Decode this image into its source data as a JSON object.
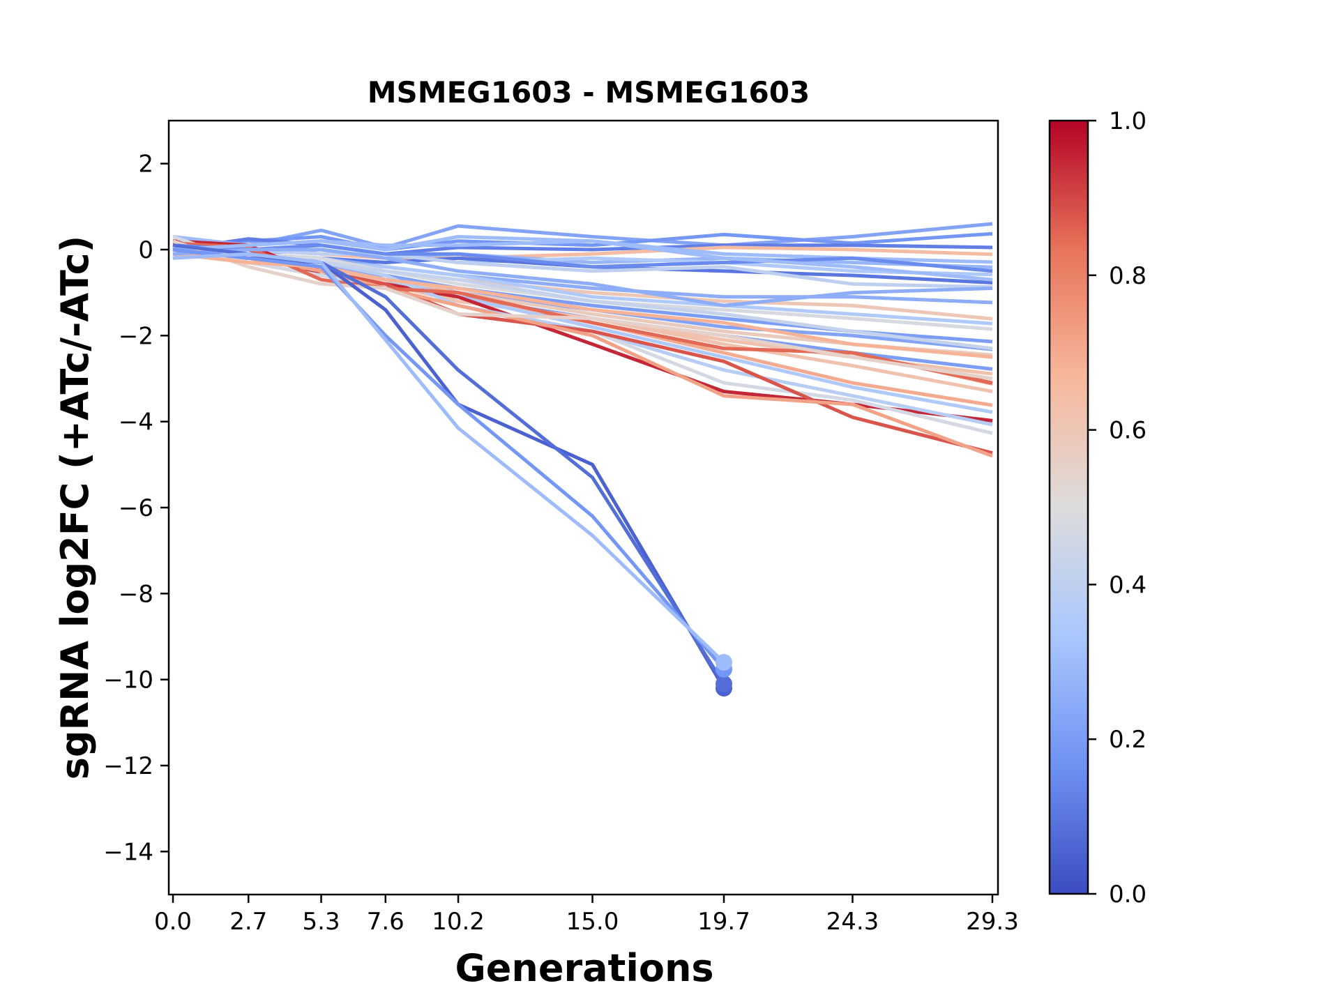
{
  "chart_data": {
    "type": "line",
    "title": "MSMEG1603 - MSMEG1603",
    "xlabel": "Generations",
    "ylabel": "sgRNA log2FC (+ATc/-ATc)",
    "x": [
      0.0,
      2.7,
      5.3,
      7.6,
      10.2,
      15.0,
      19.7,
      24.3,
      29.3
    ],
    "xtick_labels": [
      "0.0",
      "2.7",
      "5.3",
      "7.6",
      "10.2",
      "15.0",
      "19.7",
      "24.3",
      "29.3"
    ],
    "yticks": [
      2,
      0,
      -2,
      -4,
      -6,
      -8,
      -10,
      -12,
      -14
    ],
    "ytick_labels": [
      "2",
      "0",
      "−2",
      "−4",
      "−6",
      "−8",
      "−10",
      "−12",
      "−14"
    ],
    "xlim": [
      -0.15,
      29.5
    ],
    "ylim": [
      -15,
      3
    ],
    "grid": false,
    "colormap": "coolwarm",
    "colorbar": {
      "range": [
        0.0,
        1.0
      ],
      "ticks": [
        0.0,
        0.2,
        0.4,
        0.6,
        0.8,
        1.0
      ],
      "tick_labels": [
        "0.0",
        "0.2",
        "0.4",
        "0.6",
        "0.8",
        "1.0"
      ],
      "stops": [
        "#3b4cc0",
        "#6f92f3",
        "#aac7fd",
        "#dddcdc",
        "#f7b89c",
        "#e7745b",
        "#b40426"
      ]
    },
    "series": [
      {
        "c": 0.22,
        "values": [
          -0.2,
          0.1,
          0.45,
          0.05,
          0.55,
          0.3,
          0.1,
          0.3,
          0.6
        ]
      },
      {
        "c": 0.18,
        "values": [
          0.1,
          0.2,
          0.3,
          0.0,
          0.2,
          0.1,
          0.35,
          0.15,
          0.37
        ]
      },
      {
        "c": 0.12,
        "values": [
          0.0,
          0.25,
          0.1,
          -0.1,
          0.05,
          0.0,
          0.1,
          0.1,
          0.05
        ]
      },
      {
        "c": 0.65,
        "values": [
          0.2,
          0.0,
          -0.1,
          -0.2,
          -0.2,
          -0.1,
          0.05,
          0.0,
          -0.11
        ]
      },
      {
        "c": 0.3,
        "values": [
          0.3,
          0.1,
          0.2,
          0.1,
          0.1,
          0.2,
          -0.1,
          -0.2,
          -0.29
        ]
      },
      {
        "c": 0.28,
        "values": [
          0.0,
          -0.1,
          0.0,
          -0.2,
          -0.1,
          -0.3,
          -0.2,
          -0.3,
          -0.41
        ]
      },
      {
        "c": 0.35,
        "values": [
          0.1,
          0.0,
          0.1,
          -0.1,
          -0.3,
          -0.2,
          -0.3,
          -0.5,
          -0.58
        ]
      },
      {
        "c": 0.1,
        "values": [
          0.0,
          -0.1,
          -0.2,
          -0.3,
          -0.2,
          -0.4,
          -0.5,
          -0.6,
          -0.77
        ]
      },
      {
        "c": 0.4,
        "values": [
          0.2,
          0.0,
          -0.1,
          -0.1,
          -0.3,
          -0.5,
          -0.4,
          -0.8,
          -0.87
        ]
      },
      {
        "c": 0.25,
        "values": [
          -0.1,
          -0.2,
          -0.2,
          -0.4,
          -0.6,
          -0.9,
          -1.1,
          -1.1,
          -1.23
        ]
      },
      {
        "c": 0.6,
        "values": [
          0.1,
          -0.1,
          -0.3,
          -0.5,
          -0.7,
          -1.0,
          -1.2,
          -1.3,
          -1.61
        ]
      },
      {
        "c": 0.35,
        "values": [
          0.0,
          -0.2,
          -0.3,
          -0.4,
          -0.6,
          -1.1,
          -1.3,
          -1.5,
          -1.72
        ]
      },
      {
        "c": 0.48,
        "values": [
          0.2,
          -0.1,
          -0.2,
          -0.5,
          -0.8,
          -1.2,
          -1.4,
          -1.6,
          -1.85
        ]
      },
      {
        "c": 0.2,
        "values": [
          -0.1,
          -0.2,
          -0.4,
          -0.6,
          -0.9,
          -1.3,
          -1.6,
          -1.9,
          -2.14
        ]
      },
      {
        "c": 0.22,
        "values": [
          0.0,
          -0.1,
          -0.3,
          -0.6,
          -1.0,
          -1.4,
          -1.8,
          -2.0,
          -2.32
        ]
      },
      {
        "c": 0.58,
        "values": [
          0.1,
          -0.2,
          -0.5,
          -0.7,
          -1.0,
          -1.5,
          -1.9,
          -2.2,
          -2.45
        ]
      },
      {
        "c": 0.2,
        "values": [
          0.0,
          -0.1,
          -0.3,
          -0.7,
          -1.1,
          -1.6,
          -2.0,
          -2.4,
          -2.78
        ]
      },
      {
        "c": 0.62,
        "values": [
          0.0,
          -0.3,
          -0.6,
          -0.8,
          -1.2,
          -1.6,
          -2.1,
          -2.5,
          -2.89
        ]
      },
      {
        "c": 0.78,
        "values": [
          0.1,
          -0.2,
          -0.5,
          -0.8,
          -1.1,
          -1.7,
          -2.3,
          -2.4,
          -3.12
        ]
      },
      {
        "c": 0.62,
        "values": [
          0.1,
          -0.2,
          -0.4,
          -0.7,
          -1.2,
          -1.6,
          -2.2,
          -2.7,
          -3.3
        ]
      },
      {
        "c": 0.7,
        "values": [
          -0.1,
          -0.2,
          -0.5,
          -0.8,
          -1.0,
          -1.7,
          -2.4,
          -3.1,
          -3.62
        ]
      },
      {
        "c": 0.35,
        "values": [
          0.0,
          -0.2,
          -0.4,
          -0.7,
          -1.1,
          -1.8,
          -2.5,
          -3.2,
          -3.78
        ]
      },
      {
        "c": 0.95,
        "values": [
          0.2,
          0.1,
          -0.6,
          -0.8,
          -1.1,
          -2.2,
          -3.3,
          -3.6,
          -3.98
        ]
      },
      {
        "c": 0.38,
        "values": [
          0.1,
          -0.1,
          -0.3,
          -0.6,
          -1.3,
          -1.9,
          -2.8,
          -3.4,
          -4.07
        ]
      },
      {
        "c": 0.47,
        "values": [
          0.3,
          -0.3,
          -0.6,
          -0.9,
          -1.5,
          -1.9,
          -3.1,
          -3.5,
          -4.27
        ]
      },
      {
        "c": 0.88,
        "values": [
          0.1,
          0.0,
          -0.5,
          -0.8,
          -1.5,
          -1.9,
          -2.6,
          -3.9,
          -4.73
        ]
      },
      {
        "c": 0.72,
        "values": [
          0.0,
          -0.2,
          -0.5,
          -0.9,
          -1.3,
          -2.0,
          -3.4,
          -3.6,
          -4.8
        ]
      },
      {
        "c": 0.85,
        "values": [
          0.15,
          0.05,
          -0.7,
          -0.9,
          -1.0,
          -1.7,
          -2.3,
          -2.4,
          -3.1
        ]
      },
      {
        "c": 0.55,
        "values": [
          0.2,
          -0.4,
          -0.8,
          -0.9,
          -1.5,
          -1.6,
          -2.0,
          -2.5,
          -3.0
        ]
      },
      {
        "c": 0.68,
        "values": [
          -0.1,
          -0.3,
          -0.4,
          -0.7,
          -0.9,
          -1.4,
          -1.7,
          -2.2,
          -2.5
        ]
      },
      {
        "c": 0.42,
        "values": [
          0.0,
          -0.2,
          -0.3,
          -0.5,
          -0.7,
          -1.2,
          -1.5,
          -1.9,
          -2.3
        ]
      },
      {
        "c": 0.15,
        "values": [
          0.1,
          0.0,
          0.1,
          -0.1,
          -0.1,
          -0.4,
          -0.3,
          -0.2,
          -0.5
        ]
      },
      {
        "c": 0.3,
        "values": [
          0.0,
          0.1,
          0.2,
          0.0,
          0.3,
          0.2,
          -0.2,
          -0.4,
          -0.7
        ]
      },
      {
        "c": 0.25,
        "values": [
          -0.1,
          0.0,
          0.0,
          -0.2,
          -0.5,
          -0.8,
          -1.3,
          -1.0,
          -0.9
        ]
      },
      {
        "c": 0.05,
        "values": [
          0.0,
          -0.2,
          -0.3,
          -1.4,
          -3.6,
          -5.0,
          -10.2,
          null,
          null
        ],
        "end_marker": true
      },
      {
        "c": 0.08,
        "values": [
          0.1,
          -0.1,
          -0.3,
          -1.1,
          -2.8,
          -5.3,
          -10.1,
          null,
          null
        ],
        "end_marker": true
      },
      {
        "c": 0.18,
        "values": [
          0.0,
          -0.2,
          -0.4,
          -2.0,
          -3.6,
          -6.2,
          -9.76,
          null,
          null
        ],
        "end_marker": true
      },
      {
        "c": 0.3,
        "values": [
          -0.2,
          -0.1,
          -0.3,
          -2.1,
          -4.15,
          -6.65,
          -9.6,
          null,
          null
        ],
        "end_marker": true
      }
    ]
  }
}
